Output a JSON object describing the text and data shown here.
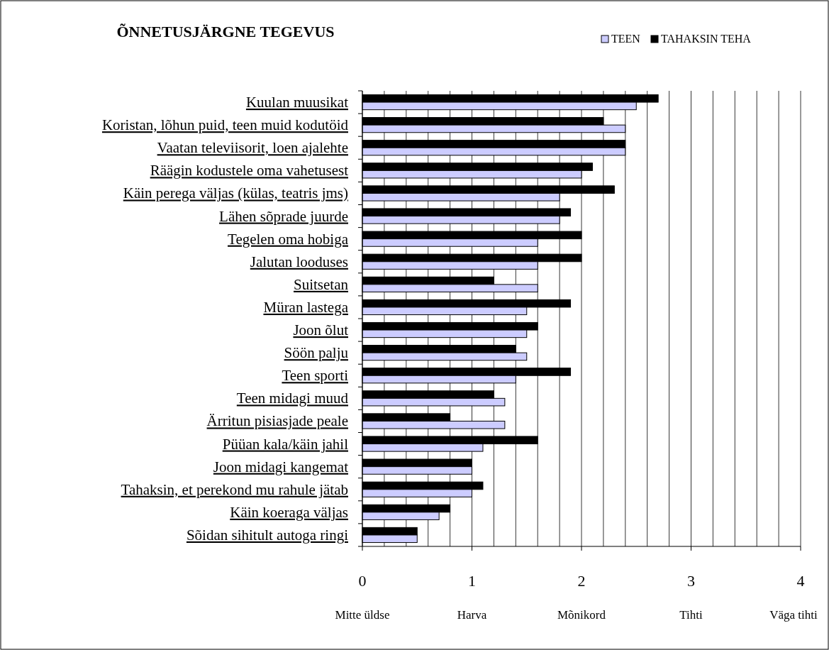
{
  "chart_data": {
    "type": "bar",
    "orientation": "horizontal",
    "title": "ÕNNETUSJÄRGNE TEGEVUS",
    "categories": [
      "Kuulan muusikat",
      "Koristan, lõhun puid, teen muid kodutöid",
      "Vaatan televiisorit, loen ajalehte",
      "Räägin kodustele oma vahetusest",
      "Käin perega väljas (külas, teatris jms)",
      "Lähen sõprade juurde",
      "Tegelen oma hobiga",
      "Jalutan looduses",
      "Suitsetan",
      "Müran lastega",
      "Joon õlut",
      "Söön palju",
      "Teen sporti",
      "Teen midagi muud",
      "Ärritun pisiasjade peale",
      "Püüan kala/käin jahil",
      "Joon midagi kangemat",
      "Tahaksin, et perekond mu rahule jätab",
      "Käin koeraga väljas",
      "Sõidan sihitult autoga ringi"
    ],
    "series": [
      {
        "name": "TAHAKSIN TEHA",
        "color": "#000000",
        "values": [
          2.7,
          2.2,
          2.4,
          2.1,
          2.3,
          1.9,
          2.0,
          2.0,
          1.2,
          1.9,
          1.6,
          1.4,
          1.9,
          1.2,
          0.8,
          1.6,
          1.0,
          1.1,
          0.8,
          0.5
        ]
      },
      {
        "name": "TEEN",
        "color": "#ccccff",
        "values": [
          2.5,
          2.4,
          2.4,
          2.0,
          1.8,
          1.8,
          1.6,
          1.6,
          1.6,
          1.5,
          1.5,
          1.5,
          1.4,
          1.3,
          1.3,
          1.1,
          1.0,
          1.0,
          0.7,
          0.5
        ]
      }
    ],
    "xlim": [
      0,
      4
    ],
    "xticks": [
      0,
      {
        "value": 0.2,
        "label": null
      },
      {
        "value": 0.4,
        "label": null
      },
      {
        "value": 0.6,
        "label": null
      },
      {
        "value": 0.8,
        "label": null
      },
      1,
      {
        "value": 1.2,
        "label": null
      },
      {
        "value": 1.4,
        "label": null
      },
      {
        "value": 1.6,
        "label": null
      },
      {
        "value": 1.8,
        "label": null
      },
      2,
      {
        "value": 2.2,
        "label": null
      },
      {
        "value": 2.4,
        "label": null
      },
      {
        "value": 2.6,
        "label": null
      },
      {
        "value": 2.8,
        "label": null
      },
      3,
      {
        "value": 3.2,
        "label": null
      },
      {
        "value": 3.4,
        "label": null
      },
      {
        "value": 3.6,
        "label": null
      },
      {
        "value": 3.8,
        "label": null
      },
      4
    ],
    "grid": "x",
    "legend": "top right",
    "annotations": [
      "Mitte üldse",
      "Harva",
      "Mõnikord",
      "Tihti",
      "Väga tihti"
    ]
  }
}
